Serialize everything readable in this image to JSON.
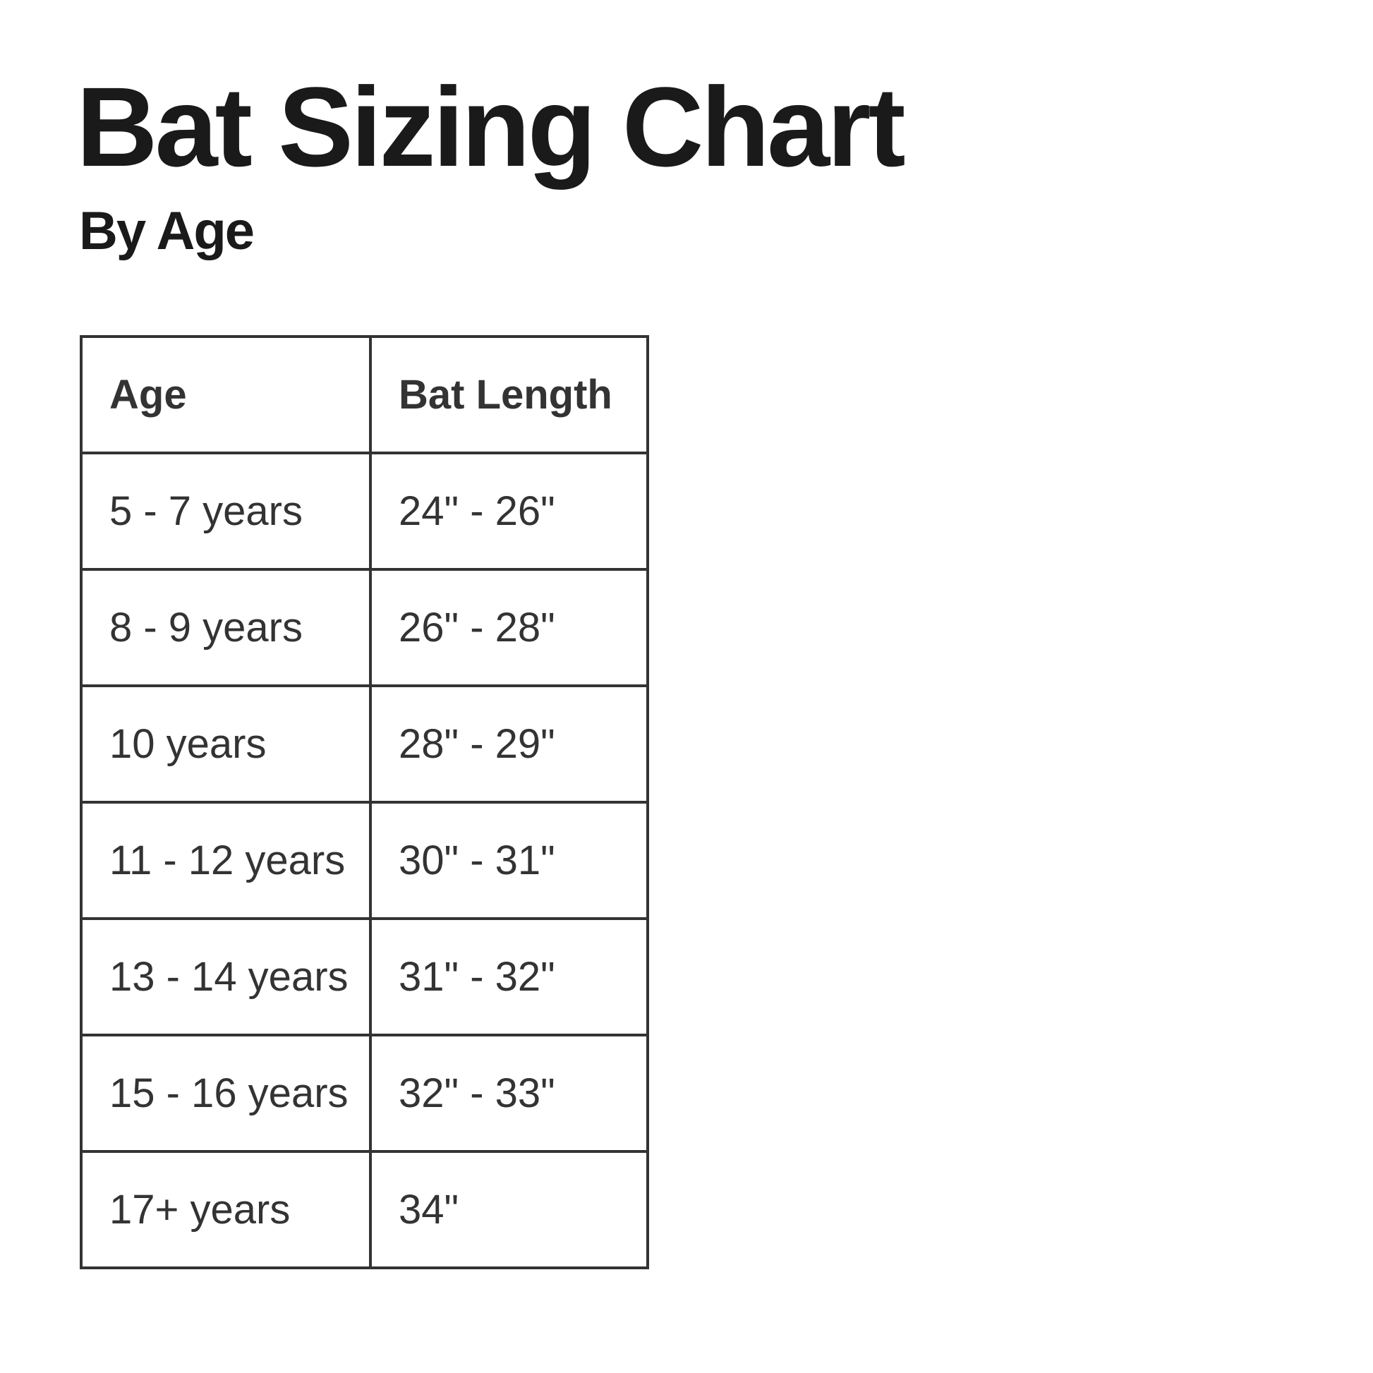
{
  "title": "Bat Sizing Chart",
  "subtitle": "By Age",
  "table": {
    "headers": [
      "Age",
      "Bat Length"
    ],
    "rows": [
      [
        "5 - 7 years",
        "24\" - 26\""
      ],
      [
        "8 - 9 years",
        "26\" - 28\""
      ],
      [
        "10 years",
        "28\" - 29\""
      ],
      [
        "11 - 12 years",
        "30\" - 31\""
      ],
      [
        "13 - 14 years",
        "31\" - 32\""
      ],
      [
        "15 - 16 years",
        "32\" - 33\""
      ],
      [
        "17+ years",
        "34\""
      ]
    ]
  }
}
